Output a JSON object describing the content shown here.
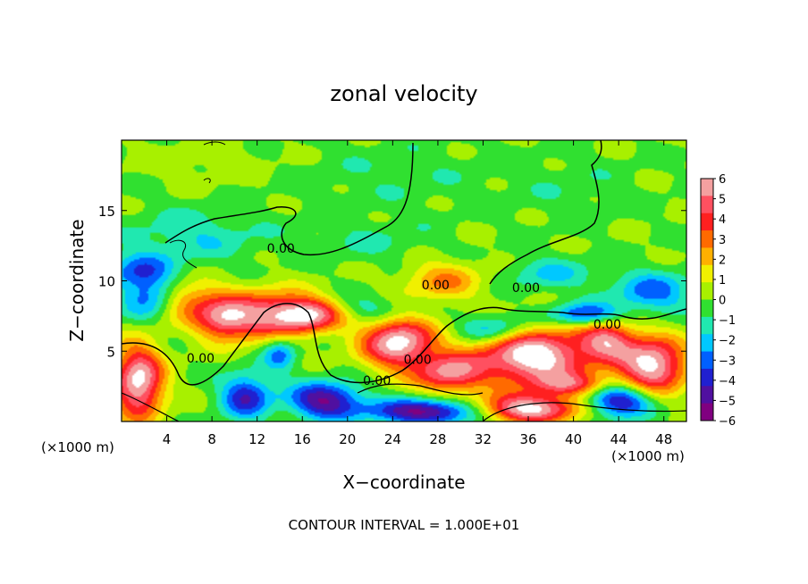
{
  "chart_data": {
    "type": "heatmap",
    "title": "zonal velocity",
    "xlabel": "X−coordinate",
    "ylabel": "Z−coordinate",
    "x_unit_left": "(×1000 m)",
    "x_unit_right": "(×1000 m)",
    "footer": "CONTOUR INTERVAL = 1.000E+01",
    "xlim": [
      0,
      50
    ],
    "ylim": [
      0,
      20
    ],
    "x_ticks": [
      "4",
      "8",
      "12",
      "16",
      "20",
      "24",
      "28",
      "32",
      "36",
      "40",
      "44",
      "48"
    ],
    "x_tick_values": [
      4,
      8,
      12,
      16,
      20,
      24,
      28,
      32,
      36,
      40,
      44,
      48
    ],
    "y_ticks": [
      "5",
      "10",
      "15"
    ],
    "y_tick_values": [
      5,
      10,
      15
    ],
    "colorbar": {
      "range": [
        -6,
        6
      ],
      "labels": [
        "6",
        "5",
        "4",
        "3",
        "2",
        "1",
        "0",
        "−1",
        "−2",
        "−3",
        "−4",
        "−5",
        "−6"
      ],
      "values": [
        6,
        5,
        4,
        3,
        2,
        1,
        0,
        -1,
        -2,
        -3,
        -4,
        -5,
        -6
      ],
      "colors": [
        "#f4a0a0",
        "#ff5060",
        "#ff2020",
        "#ff6a00",
        "#ffb000",
        "#f0f000",
        "#a8f000",
        "#30e030",
        "#20e8b0",
        "#00c8ff",
        "#0060ff",
        "#2020d0",
        "#5010a0",
        "#800080"
      ]
    },
    "contour_labels": [
      {
        "text": "0.00",
        "x": 14.1,
        "y": 12.0
      },
      {
        "text": "0.00",
        "x": 27.8,
        "y": 9.4
      },
      {
        "text": "0.00",
        "x": 35.8,
        "y": 9.2
      },
      {
        "text": "0.00",
        "x": 43.0,
        "y": 6.6
      },
      {
        "text": "0.00",
        "x": 7.0,
        "y": 4.2
      },
      {
        "text": "0.00",
        "x": 26.2,
        "y": 4.1
      },
      {
        "text": "0.00",
        "x": 22.6,
        "y": 2.6
      }
    ],
    "features": [
      {
        "x": 12.5,
        "y": 7.6,
        "rx": 4.0,
        "ry": 1.8,
        "v": 4.0
      },
      {
        "x": 5.5,
        "y": 8.6,
        "rx": 3.5,
        "ry": 1.4,
        "v": 3.0
      },
      {
        "x": 9.0,
        "y": 7.2,
        "rx": 2.5,
        "ry": 1.4,
        "v": 4.0
      },
      {
        "x": 16.5,
        "y": 7.6,
        "rx": 3.2,
        "ry": 1.2,
        "v": 5.5
      },
      {
        "x": 24.5,
        "y": 5.6,
        "rx": 3.2,
        "ry": 1.8,
        "v": 6.5
      },
      {
        "x": 29.0,
        "y": 3.4,
        "rx": 3.0,
        "ry": 1.4,
        "v": 5.0
      },
      {
        "x": 28.5,
        "y": 10.0,
        "rx": 3.5,
        "ry": 1.4,
        "v": 2.6
      },
      {
        "x": 36.5,
        "y": 4.6,
        "rx": 5.0,
        "ry": 2.0,
        "v": 7.0
      },
      {
        "x": 47.0,
        "y": 4.0,
        "rx": 3.0,
        "ry": 2.0,
        "v": 6.5
      },
      {
        "x": 43.0,
        "y": 5.8,
        "rx": 2.4,
        "ry": 1.4,
        "v": 4.5
      },
      {
        "x": 1.5,
        "y": 2.8,
        "rx": 2.2,
        "ry": 2.6,
        "v": 6.5
      },
      {
        "x": 18.0,
        "y": 1.5,
        "rx": 3.2,
        "ry": 1.3,
        "v": -5.2
      },
      {
        "x": 11.0,
        "y": 1.8,
        "rx": 2.2,
        "ry": 1.6,
        "v": -4.2
      },
      {
        "x": 27.0,
        "y": 0.7,
        "rx": 5.0,
        "ry": 0.9,
        "v": -5.5
      },
      {
        "x": 36.0,
        "y": 0.9,
        "rx": 4.5,
        "ry": 1.0,
        "v": 6.5
      },
      {
        "x": 22.0,
        "y": 8.0,
        "rx": 3.5,
        "ry": 1.0,
        "v": -1.8
      },
      {
        "x": 41.0,
        "y": 7.6,
        "rx": 3.0,
        "ry": 0.8,
        "v": -4.0
      },
      {
        "x": 2.5,
        "y": 8.8,
        "rx": 2.5,
        "ry": 1.5,
        "v": -4.0
      },
      {
        "x": 1.5,
        "y": 10.8,
        "rx": 3.0,
        "ry": 1.2,
        "v": -2.8
      },
      {
        "x": 47.0,
        "y": 9.2,
        "rx": 3.5,
        "ry": 1.5,
        "v": -3.0
      },
      {
        "x": 38.0,
        "y": 10.5,
        "rx": 4.0,
        "ry": 1.2,
        "v": -1.8
      },
      {
        "x": 6.5,
        "y": 13.2,
        "rx": 6.0,
        "ry": 2.0,
        "v": -1.6
      },
      {
        "x": 22.0,
        "y": 12.8,
        "rx": 6.0,
        "ry": 1.5,
        "v": -0.9
      },
      {
        "x": 33.0,
        "y": 6.6,
        "rx": 3.0,
        "ry": 1.0,
        "v": -3.0
      },
      {
        "x": 44.0,
        "y": 1.5,
        "rx": 3.0,
        "ry": 1.2,
        "v": -5.0
      },
      {
        "x": 24.0,
        "y": 17.5,
        "rx": 9.0,
        "ry": 2.5,
        "v": -0.7
      },
      {
        "x": 8.0,
        "y": 18.5,
        "rx": 6.0,
        "ry": 1.5,
        "v": 0.6
      },
      {
        "x": 40.0,
        "y": 16.5,
        "rx": 6.0,
        "ry": 2.5,
        "v": -0.6
      },
      {
        "x": 14.0,
        "y": 4.8,
        "rx": 1.5,
        "ry": 1.2,
        "v": -3.0
      },
      {
        "x": 40.0,
        "y": 2.6,
        "rx": 3.5,
        "ry": 0.8,
        "v": 3.5
      }
    ]
  }
}
